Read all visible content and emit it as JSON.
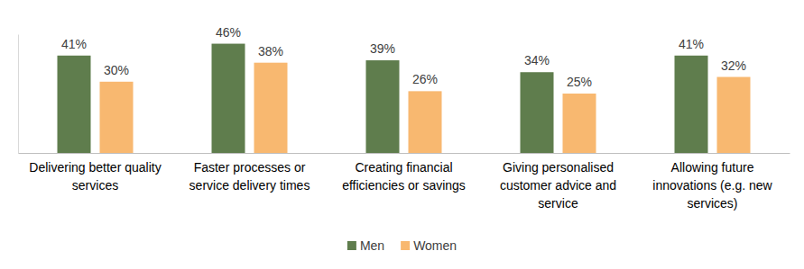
{
  "chart_data": {
    "type": "bar",
    "categories": [
      "Delivering better quality services",
      "Faster processes or service delivery times",
      "Creating financial efficiencies or savings",
      "Giving personalised customer advice and service",
      "Allowing future innovations (e.g. new services)"
    ],
    "series": [
      {
        "name": "Men",
        "color": "#5f7d4d",
        "values": [
          41,
          46,
          39,
          34,
          41
        ],
        "value_labels": [
          "41%",
          "46%",
          "39%",
          "34%",
          "41%"
        ]
      },
      {
        "name": "Women",
        "color": "#f8b870",
        "values": [
          30,
          38,
          26,
          25,
          32
        ],
        "value_labels": [
          "30%",
          "38%",
          "26%",
          "25%",
          "32%"
        ]
      }
    ],
    "ylim": [
      0,
      50
    ],
    "yticks": [],
    "grid": false,
    "data_labels": true,
    "tick_labels": "x",
    "legend": "bottom"
  }
}
